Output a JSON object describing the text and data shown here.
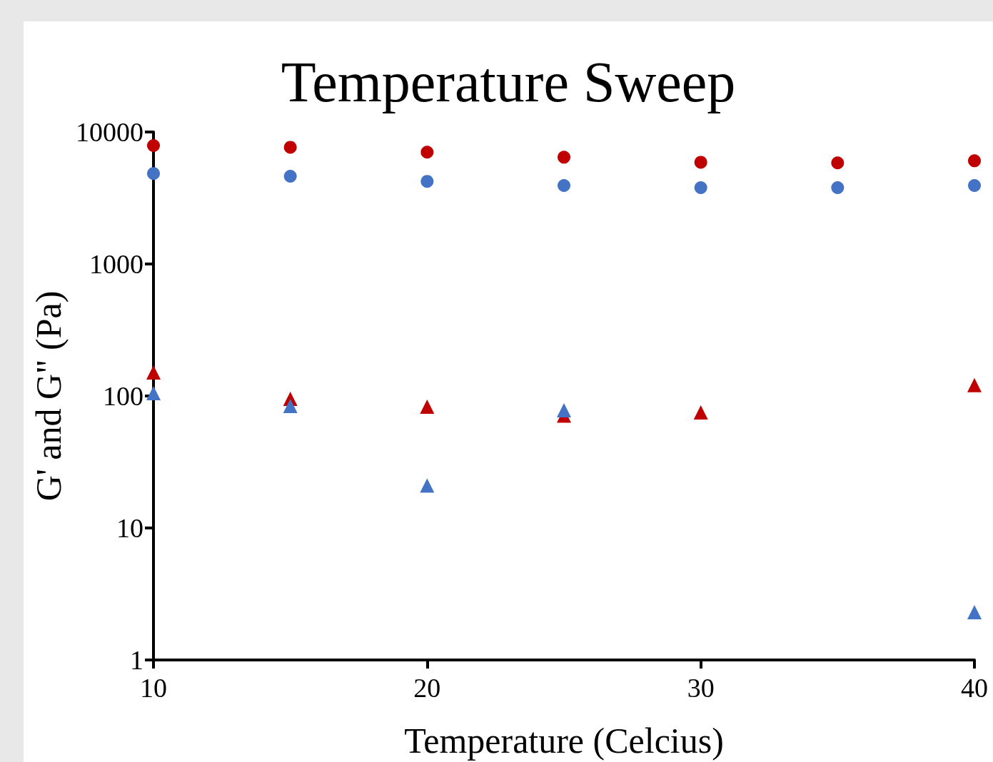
{
  "chart_data": {
    "type": "scatter",
    "title": "Temperature Sweep",
    "xlabel": "Temperature (Celcius)",
    "ylabel": "G' and G\" (Pa)",
    "x": [
      10,
      15,
      20,
      25,
      30,
      35,
      40
    ],
    "series": [
      {
        "color": "#c00000",
        "marker": "circle",
        "values": [
          7900,
          7660,
          7030,
          6440,
          5900,
          5840,
          6050
        ]
      },
      {
        "color": "#4472c4",
        "marker": "circle",
        "values": [
          4850,
          4620,
          4230,
          3930,
          3790,
          3790,
          3930
        ]
      },
      {
        "color": "#c00000",
        "marker": "triangle",
        "values": [
          151,
          95,
          83,
          71,
          75,
          null,
          121
        ]
      },
      {
        "color": "#4472c4",
        "marker": "triangle",
        "values": [
          105,
          84,
          21,
          78,
          null,
          null,
          2.3
        ]
      }
    ],
    "xlim": [
      10,
      40
    ],
    "xticks": [
      10,
      20,
      30,
      40
    ],
    "ylim": [
      1,
      10000
    ],
    "yticks": [
      1,
      10,
      100,
      1000,
      10000
    ],
    "log": "y",
    "grid": false
  }
}
